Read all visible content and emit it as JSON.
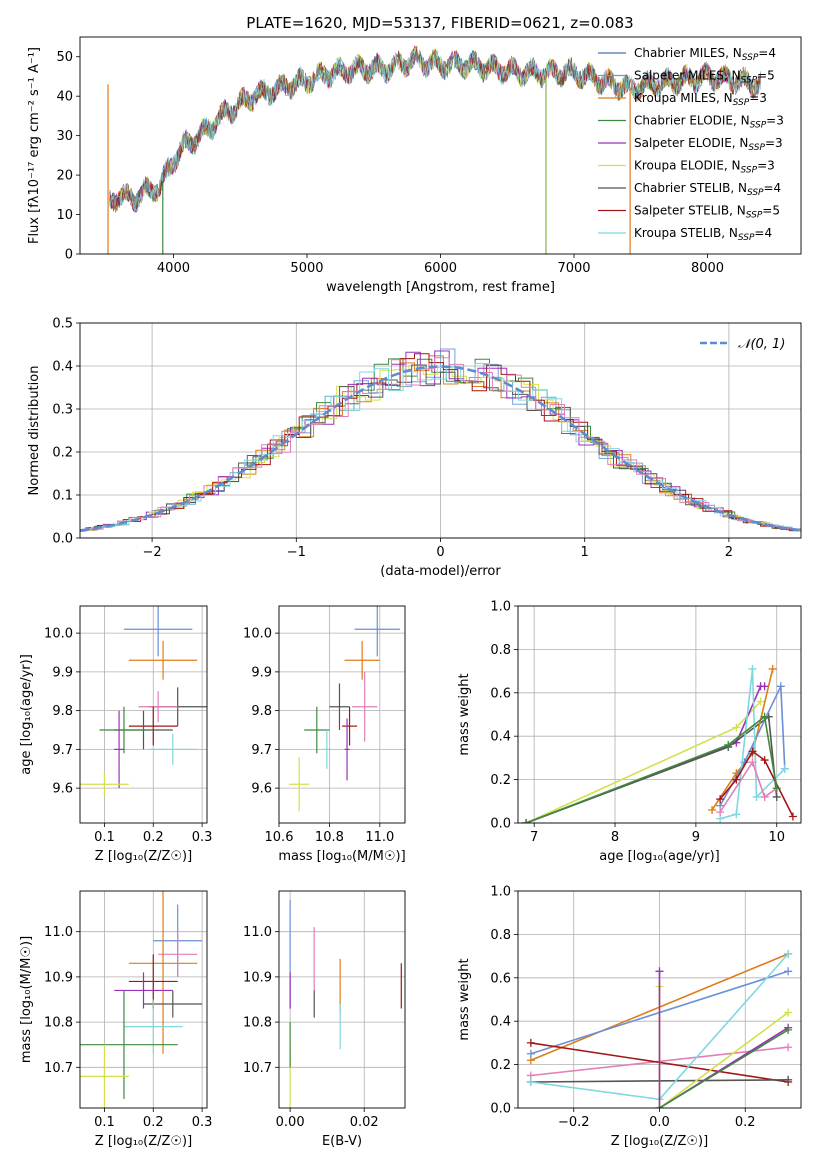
{
  "figure": {
    "title": "PLATE=1620, MJD=53137, FIBERID=0621, z=0.083"
  },
  "chart_data": [
    {
      "id": "spectrum",
      "type": "line",
      "xlabel": "wavelength [Angstrom, rest frame]",
      "ylabel": "Flux [fλ10⁻¹⁷ erg cm⁻² s⁻¹ A⁻¹]",
      "xlim": [
        3300,
        8700
      ],
      "ylim": [
        0,
        55
      ],
      "xticks": [
        4000,
        5000,
        6000,
        7000,
        8000
      ],
      "yticks": [
        0,
        10,
        20,
        30,
        40,
        50
      ],
      "grid": false,
      "legend_position": "top-right",
      "continuum": {
        "x": [
          3520,
          3600,
          3700,
          3800,
          3900,
          4000,
          4100,
          4200,
          4300,
          4400,
          4600,
          4800,
          5000,
          5200,
          5400,
          5600,
          5800,
          6000,
          6200,
          6400,
          6600,
          6800,
          7000,
          7200,
          7400,
          7600,
          7800,
          8000,
          8200,
          8400
        ],
        "y": [
          13,
          15,
          14,
          16,
          17,
          24,
          28,
          30,
          33,
          36,
          40,
          42,
          44,
          46,
          47,
          47,
          49,
          48,
          48,
          47,
          46,
          46,
          46,
          44,
          42,
          43,
          44,
          45,
          44,
          43
        ]
      },
      "series": [
        {
          "name": "Chabrier MILES, N$_{SSP}$=4",
          "color": "#4c72b0"
        },
        {
          "name": "Salpeter MILES, N$_{SSP}$=5",
          "color": "#5ea0d8"
        },
        {
          "name": "Kroupa MILES, N$_{SSP}$=3",
          "color": "#e07b1a"
        },
        {
          "name": "Chabrier ELODIE, N$_{SSP}$=3",
          "color": "#3f8a3f"
        },
        {
          "name": "Salpeter ELODIE, N$_{SSP}$=3",
          "color": "#9b30b8"
        },
        {
          "name": "Kroupa ELODIE, N$_{SSP}$=3",
          "color": "#d4e04a"
        },
        {
          "name": "Chabrier STELIB, N$_{SSP}$=4",
          "color": "#555555"
        },
        {
          "name": "Salpeter STELIB, N$_{SSP}$=5",
          "color": "#a01818"
        },
        {
          "name": "Kroupa STELIB, N$_{SSP}$=4",
          "color": "#7fd7e0"
        }
      ],
      "drops_to_zero": [
        3510,
        3920,
        6790,
        7420
      ]
    },
    {
      "id": "residuals",
      "type": "histogram",
      "xlabel": "(data-model)/error",
      "ylabel": "Normed distribution",
      "xlim": [
        -2.5,
        2.5
      ],
      "ylim": [
        0,
        0.5
      ],
      "xticks": [
        -2,
        -1,
        0,
        1,
        2
      ],
      "yticks": [
        0.0,
        0.1,
        0.2,
        0.3,
        0.4,
        0.5
      ],
      "grid": true,
      "legend_position": "top-right",
      "legend": "𝒩(0, 1)",
      "reference_color": "#5b8bd0",
      "bin_width": 0.1,
      "series_colors": [
        "#6fa8dc",
        "#e07b1a",
        "#3f8a3f",
        "#9b30b8",
        "#d4e04a",
        "#555555",
        "#a01818",
        "#7fd7e0",
        "#e07fb8"
      ]
    },
    {
      "id": "age_vs_Z",
      "type": "errorbar",
      "xlabel": "Z [log₁₀(Z/Z☉)]",
      "ylabel": "age  [log₁₀(age/yr)]",
      "xlim": [
        0.05,
        0.31
      ],
      "ylim": [
        9.51,
        10.07
      ],
      "xticks": [
        0.1,
        0.2,
        0.3
      ],
      "yticks": [
        9.6,
        9.7,
        9.8,
        9.9,
        10.0
      ],
      "grid": true,
      "points": [
        {
          "x": 0.21,
          "y": 10.01,
          "xerr": 0.07,
          "yerr": 0.07,
          "color": "#6a8fd8"
        },
        {
          "x": 0.22,
          "y": 9.93,
          "xerr": 0.07,
          "yerr": 0.05,
          "color": "#e07b1a"
        },
        {
          "x": 0.25,
          "y": 9.81,
          "xerr": 0.06,
          "yerr": 0.05,
          "color": "#555555"
        },
        {
          "x": 0.21,
          "y": 9.81,
          "xerr": 0.04,
          "yerr": 0.04,
          "color": "#e07fb8"
        },
        {
          "x": 0.2,
          "y": 9.76,
          "xerr": 0.05,
          "yerr": 0.05,
          "color": "#a01818"
        },
        {
          "x": 0.18,
          "y": 9.75,
          "xerr": 0.06,
          "yerr": 0.05,
          "color": "#555555"
        },
        {
          "x": 0.14,
          "y": 9.75,
          "xerr": 0.05,
          "yerr": 0.06,
          "color": "#3f8a3f"
        },
        {
          "x": 0.24,
          "y": 9.7,
          "xerr": 0.05,
          "yerr": 0.04,
          "color": "#7fd7e0"
        },
        {
          "x": 0.13,
          "y": 9.7,
          "xerr": 0.01,
          "yerr": 0.1,
          "color": "#9b30b8"
        },
        {
          "x": 0.1,
          "y": 9.61,
          "xerr": 0.05,
          "yerr": 0.03,
          "color": "#d4e04a"
        }
      ]
    },
    {
      "id": "age_vs_mass",
      "type": "errorbar",
      "xlabel": "mass [log₁₀(M/M☉)]",
      "ylabel": "",
      "xlim": [
        10.6,
        11.1
      ],
      "ylim": [
        9.51,
        10.07
      ],
      "xticks": [
        10.6,
        10.8,
        11.0
      ],
      "yticks": [
        9.6,
        9.7,
        9.8,
        9.9,
        10.0
      ],
      "grid": true,
      "points": [
        {
          "x": 10.99,
          "y": 10.01,
          "xerr": 0.09,
          "yerr": 0.07,
          "color": "#6a8fd8"
        },
        {
          "x": 10.93,
          "y": 9.93,
          "xerr": 0.07,
          "yerr": 0.05,
          "color": "#e07b1a"
        },
        {
          "x": 10.84,
          "y": 9.81,
          "xerr": 0.04,
          "yerr": 0.06,
          "color": "#555555"
        },
        {
          "x": 10.94,
          "y": 9.81,
          "xerr": 0.05,
          "yerr": 0.09,
          "color": "#e07fb8"
        },
        {
          "x": 10.88,
          "y": 9.76,
          "xerr": 0.03,
          "yerr": 0.05,
          "color": "#a01818"
        },
        {
          "x": 10.75,
          "y": 9.75,
          "xerr": 0.05,
          "yerr": 0.06,
          "color": "#3f8a3f"
        },
        {
          "x": 10.79,
          "y": 9.7,
          "xerr": 0.02,
          "yerr": 0.05,
          "color": "#7fd7e0"
        },
        {
          "x": 10.87,
          "y": 9.7,
          "xerr": 0.01,
          "yerr": 0.08,
          "color": "#9b30b8"
        },
        {
          "x": 10.68,
          "y": 9.61,
          "xerr": 0.04,
          "yerr": 0.07,
          "color": "#d4e04a"
        }
      ]
    },
    {
      "id": "weight_vs_age",
      "type": "line",
      "xlabel": "age  [log₁₀(age/yr)]",
      "ylabel": "mass weight",
      "xlim": [
        6.8,
        10.3
      ],
      "ylim": [
        0,
        1.0
      ],
      "xticks": [
        7,
        8,
        9,
        10
      ],
      "yticks": [
        0.0,
        0.2,
        0.4,
        0.6,
        0.8,
        1.0
      ],
      "grid": true,
      "series": [
        {
          "color": "#d4e04a",
          "x": [
            6.9,
            9.5,
            9.8
          ],
          "y": [
            0.0,
            0.44,
            0.56
          ]
        },
        {
          "color": "#9b30b8",
          "x": [
            6.9,
            9.5,
            9.8,
            9.85
          ],
          "y": [
            0.0,
            0.37,
            0.63,
            0.63
          ]
        },
        {
          "color": "#555555",
          "x": [
            6.9,
            9.4,
            9.9,
            10.0
          ],
          "y": [
            0.0,
            0.35,
            0.49,
            0.12
          ]
        },
        {
          "color": "#e07b1a",
          "x": [
            9.2,
            9.5,
            9.7,
            9.95
          ],
          "y": [
            0.06,
            0.23,
            0.32,
            0.71
          ]
        },
        {
          "color": "#6a8fd8",
          "x": [
            9.3,
            9.6,
            10.05,
            10.1
          ],
          "y": [
            0.08,
            0.28,
            0.63,
            0.25
          ]
        },
        {
          "color": "#7fd7e0",
          "x": [
            9.3,
            9.5,
            9.7,
            9.75,
            10.1
          ],
          "y": [
            0.02,
            0.04,
            0.71,
            0.12,
            0.25
          ]
        },
        {
          "color": "#e07fb8",
          "x": [
            9.3,
            9.7,
            9.85,
            10.0
          ],
          "y": [
            0.05,
            0.28,
            0.12,
            0.16
          ]
        },
        {
          "color": "#a01818",
          "x": [
            9.3,
            9.5,
            9.7,
            9.85,
            10.2
          ],
          "y": [
            0.11,
            0.2,
            0.33,
            0.29,
            0.03
          ]
        },
        {
          "color": "#3f8a3f",
          "x": [
            6.9,
            9.4,
            9.85,
            10.0
          ],
          "y": [
            0.0,
            0.36,
            0.49,
            0.16
          ]
        }
      ]
    },
    {
      "id": "mass_vs_Z",
      "type": "errorbar",
      "xlabel": "Z [log₁₀(Z/Z☉)]",
      "ylabel": "mass [log₁₀(M/M☉)]",
      "xlim": [
        0.05,
        0.31
      ],
      "ylim": [
        10.61,
        11.09
      ],
      "xticks": [
        0.1,
        0.2,
        0.3
      ],
      "yticks": [
        10.7,
        10.8,
        10.9,
        11.0
      ],
      "grid": true,
      "points": [
        {
          "x": 0.25,
          "y": 10.98,
          "xerr": 0.05,
          "yerr": 0.08,
          "color": "#6a8fd8"
        },
        {
          "x": 0.25,
          "y": 10.95,
          "xerr": 0.04,
          "yerr": 0.05,
          "color": "#e07fb8"
        },
        {
          "x": 0.22,
          "y": 10.93,
          "xerr": 0.07,
          "yerr": 0.2,
          "color": "#e07b1a"
        },
        {
          "x": 0.2,
          "y": 10.89,
          "xerr": 0.05,
          "yerr": 0.06,
          "color": "#a01818"
        },
        {
          "x": 0.18,
          "y": 10.87,
          "xerr": 0.06,
          "yerr": 0.04,
          "color": "#9b30b8"
        },
        {
          "x": 0.24,
          "y": 10.84,
          "xerr": 0.06,
          "yerr": 0.03,
          "color": "#555555"
        },
        {
          "x": 0.2,
          "y": 10.79,
          "xerr": 0.06,
          "yerr": 0.06,
          "color": "#7fd7e0"
        },
        {
          "x": 0.14,
          "y": 10.75,
          "xerr": 0.11,
          "yerr": 0.12,
          "color": "#3f8a3f"
        },
        {
          "x": 0.1,
          "y": 10.68,
          "xerr": 0.05,
          "yerr": 0.07,
          "color": "#d4e04a"
        }
      ]
    },
    {
      "id": "mass_vs_EBV",
      "type": "errorbar",
      "xlabel": "E(B-V)",
      "ylabel": "",
      "xlim": [
        -0.003,
        0.031
      ],
      "ylim": [
        10.61,
        11.09
      ],
      "xticks": [
        0.0,
        0.02
      ],
      "yticks": [
        10.7,
        10.8,
        10.9,
        11.0
      ],
      "grid": true,
      "points": [
        {
          "x": 0.0,
          "y": 10.95,
          "xerr": 0.0,
          "yerr": 0.12,
          "color": "#6a8fd8"
        },
        {
          "x": 0.0,
          "y": 10.87,
          "xerr": 0.0,
          "yerr": 0.04,
          "color": "#9b30b8"
        },
        {
          "x": 0.0,
          "y": 10.68,
          "xerr": 0.0,
          "yerr": 0.07,
          "color": "#d4e04a"
        },
        {
          "x": 0.0,
          "y": 10.75,
          "xerr": 0.0,
          "yerr": 0.05,
          "color": "#3f8a3f"
        },
        {
          "x": 0.0065,
          "y": 10.94,
          "xerr": 0.0,
          "yerr": 0.07,
          "color": "#e07fb8"
        },
        {
          "x": 0.0065,
          "y": 10.84,
          "xerr": 0.0,
          "yerr": 0.03,
          "color": "#555555"
        },
        {
          "x": 0.0135,
          "y": 10.88,
          "xerr": 0.0,
          "yerr": 0.06,
          "color": "#e07b1a"
        },
        {
          "x": 0.0135,
          "y": 10.79,
          "xerr": 0.0,
          "yerr": 0.05,
          "color": "#7fd7e0"
        },
        {
          "x": 0.03,
          "y": 10.88,
          "xerr": 0.0,
          "yerr": 0.05,
          "color": "#a01818"
        }
      ]
    },
    {
      "id": "weight_vs_Z",
      "type": "line",
      "xlabel": "Z [log₁₀(Z/Z☉)]",
      "ylabel": "mass weight",
      "xlim": [
        -0.33,
        0.33
      ],
      "ylim": [
        0,
        1.0
      ],
      "xticks": [
        -0.2,
        0.0,
        0.2
      ],
      "yticks": [
        0.0,
        0.2,
        0.4,
        0.6,
        0.8,
        1.0
      ],
      "grid": true,
      "series": [
        {
          "color": "#e07b1a",
          "x": [
            -0.3,
            0.3
          ],
          "y": [
            0.22,
            0.71
          ]
        },
        {
          "color": "#6a8fd8",
          "x": [
            -0.3,
            0.3
          ],
          "y": [
            0.25,
            0.63
          ]
        },
        {
          "color": "#e07fb8",
          "x": [
            -0.3,
            0.3
          ],
          "y": [
            0.15,
            0.28
          ]
        },
        {
          "color": "#a01818",
          "x": [
            -0.3,
            0.3
          ],
          "y": [
            0.3,
            0.12
          ]
        },
        {
          "color": "#555555",
          "x": [
            -0.3,
            0.3
          ],
          "y": [
            0.12,
            0.13
          ]
        },
        {
          "color": "#7fd7e0",
          "x": [
            -0.3,
            0.0,
            0.3
          ],
          "y": [
            0.12,
            0.04,
            0.71
          ]
        },
        {
          "color": "#d4e04a",
          "x": [
            0.0,
            0.0,
            0.3
          ],
          "y": [
            0.56,
            0.0,
            0.44
          ]
        },
        {
          "color": "#9b30b8",
          "x": [
            0.0,
            0.0,
            0.3
          ],
          "y": [
            0.63,
            0.0,
            0.37
          ]
        },
        {
          "color": "#3f8a3f",
          "x": [
            0.0,
            0.3
          ],
          "y": [
            0.0,
            0.36
          ]
        }
      ]
    }
  ]
}
